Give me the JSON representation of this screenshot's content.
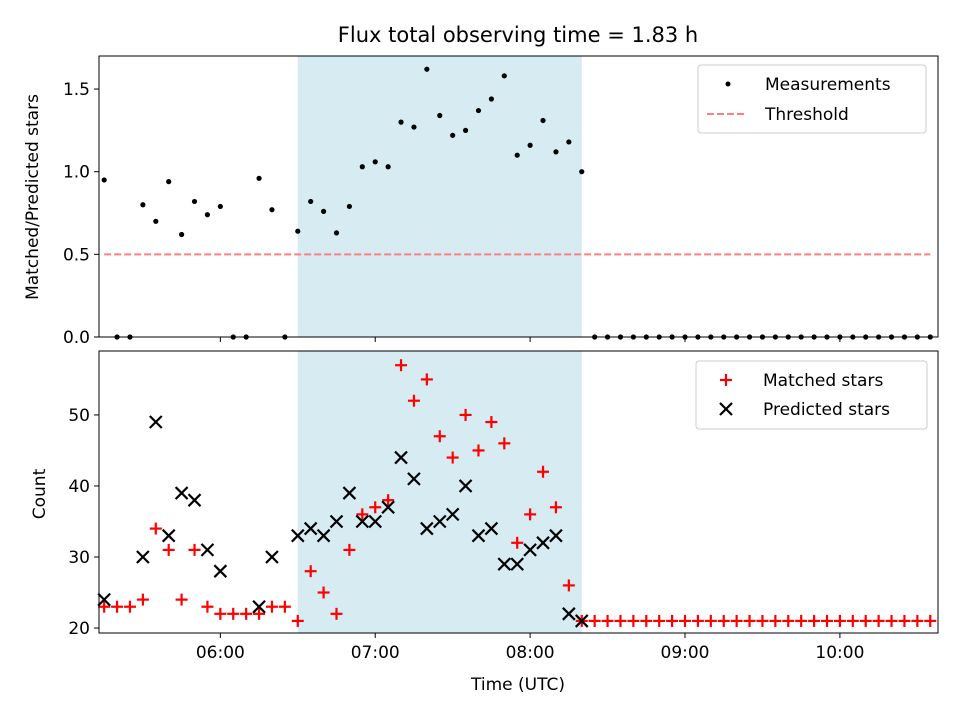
{
  "chart_data": [
    {
      "type": "scatter",
      "title": "Flux total observing time = 1.83 h",
      "xlabel": "",
      "ylabel": "Matched/Predicted stars",
      "ylim": [
        0,
        1.7
      ],
      "xlim": [
        "05:13",
        "10:38"
      ],
      "y_ticks": [
        "0.0",
        "0.5",
        "1.0",
        "1.5"
      ],
      "highlight_span": [
        "06:30",
        "08:20"
      ],
      "highlight_color": "#add8e6",
      "legend_position": "top-right",
      "legend": [
        {
          "label": "Measurements",
          "marker": "dot",
          "color": "#000000"
        },
        {
          "label": "Threshold",
          "marker": "dashed-line",
          "color": "#ff7f7f"
        }
      ],
      "threshold": {
        "y": 0.5,
        "x_range": [
          "05:15",
          "10:35"
        ]
      },
      "series": [
        {
          "name": "Measurements",
          "x": [
            "05:15",
            "05:20",
            "05:25",
            "05:30",
            "05:35",
            "05:40",
            "05:45",
            "05:50",
            "05:55",
            "06:00",
            "06:05",
            "06:10",
            "06:15",
            "06:20",
            "06:25",
            "06:30",
            "06:35",
            "06:40",
            "06:45",
            "06:50",
            "06:55",
            "07:00",
            "07:05",
            "07:10",
            "07:15",
            "07:20",
            "07:25",
            "07:30",
            "07:35",
            "07:40",
            "07:45",
            "07:50",
            "07:55",
            "08:00",
            "08:05",
            "08:10",
            "08:15",
            "08:20",
            "08:25",
            "08:30",
            "08:35",
            "08:40",
            "08:45",
            "08:50",
            "08:55",
            "09:00",
            "09:05",
            "09:10",
            "09:15",
            "09:20",
            "09:25",
            "09:30",
            "09:35",
            "09:40",
            "09:45",
            "09:50",
            "09:55",
            "10:00",
            "10:05",
            "10:10",
            "10:15",
            "10:20",
            "10:25",
            "10:30",
            "10:35"
          ],
          "y": [
            0.95,
            0,
            0,
            0.8,
            0.7,
            0.94,
            0.62,
            0.82,
            0.74,
            0.79,
            0,
            0,
            0.96,
            0.77,
            0,
            0.64,
            0.82,
            0.76,
            0.63,
            0.79,
            1.03,
            1.06,
            1.03,
            1.3,
            1.27,
            1.62,
            1.34,
            1.22,
            1.25,
            1.37,
            1.44,
            1.58,
            1.1,
            1.16,
            1.31,
            1.12,
            1.18,
            1.0,
            0,
            0,
            0,
            0,
            0,
            0,
            0,
            0,
            0,
            0,
            0,
            0,
            0,
            0,
            0,
            0,
            0,
            0,
            0,
            0,
            0,
            0,
            0,
            0,
            0,
            0,
            0
          ]
        }
      ]
    },
    {
      "type": "scatter",
      "title": "",
      "xlabel": "Time (UTC)",
      "ylabel": "Count",
      "ylim": [
        19.3,
        59
      ],
      "y_ticks": [
        "20",
        "30",
        "40",
        "50"
      ],
      "x_ticks": [
        "06:00",
        "07:00",
        "08:00",
        "09:00",
        "10:00"
      ],
      "legend_position": "top-right",
      "legend": [
        {
          "label": "Matched stars",
          "marker": "plus",
          "color": "#ff0000"
        },
        {
          "label": "Predicted stars",
          "marker": "x",
          "color": "#000000"
        }
      ],
      "series": [
        {
          "name": "Matched stars",
          "x": [
            "05:15",
            "05:20",
            "05:25",
            "05:30",
            "05:35",
            "05:40",
            "05:45",
            "05:50",
            "05:55",
            "06:00",
            "06:05",
            "06:10",
            "06:15",
            "06:20",
            "06:25",
            "06:30",
            "06:35",
            "06:40",
            "06:45",
            "06:50",
            "06:55",
            "07:00",
            "07:05",
            "07:10",
            "07:15",
            "07:20",
            "07:25",
            "07:30",
            "07:35",
            "07:40",
            "07:45",
            "07:50",
            "07:55",
            "08:00",
            "08:05",
            "08:10",
            "08:15",
            "08:20",
            "08:25",
            "08:30",
            "08:35",
            "08:40",
            "08:45",
            "08:50",
            "08:55",
            "09:00",
            "09:05",
            "09:10",
            "09:15",
            "09:20",
            "09:25",
            "09:30",
            "09:35",
            "09:40",
            "09:45",
            "09:50",
            "09:55",
            "10:00",
            "10:05",
            "10:10",
            "10:15",
            "10:20",
            "10:25",
            "10:30",
            "10:35"
          ],
          "y": [
            23,
            23,
            23,
            24,
            34,
            31,
            24,
            31,
            23,
            22,
            22,
            22,
            22,
            23,
            23,
            21,
            28,
            25,
            22,
            31,
            36,
            37,
            38,
            57,
            52,
            55,
            47,
            44,
            50,
            45,
            49,
            46,
            32,
            36,
            42,
            37,
            26,
            21,
            21,
            21,
            21,
            21,
            21,
            21,
            21,
            21,
            21,
            21,
            21,
            21,
            21,
            21,
            21,
            21,
            21,
            21,
            21,
            21,
            21,
            21,
            21,
            21,
            21,
            21,
            21
          ]
        },
        {
          "name": "Predicted stars",
          "x": [
            "05:15",
            "05:30",
            "05:35",
            "05:40",
            "05:45",
            "05:50",
            "05:55",
            "06:00",
            "06:15",
            "06:20",
            "06:30",
            "06:35",
            "06:40",
            "06:45",
            "06:50",
            "06:55",
            "07:00",
            "07:05",
            "07:10",
            "07:15",
            "07:20",
            "07:25",
            "07:30",
            "07:35",
            "07:40",
            "07:45",
            "07:50",
            "07:55",
            "08:00",
            "08:05",
            "08:10",
            "08:15",
            "08:20"
          ],
          "y": [
            24,
            30,
            49,
            33,
            39,
            38,
            31,
            28,
            23,
            30,
            33,
            34,
            33,
            35,
            39,
            35,
            35,
            37,
            44,
            41,
            34,
            35,
            36,
            40,
            33,
            34,
            29,
            29,
            31,
            32,
            33,
            22,
            21
          ]
        }
      ]
    }
  ]
}
